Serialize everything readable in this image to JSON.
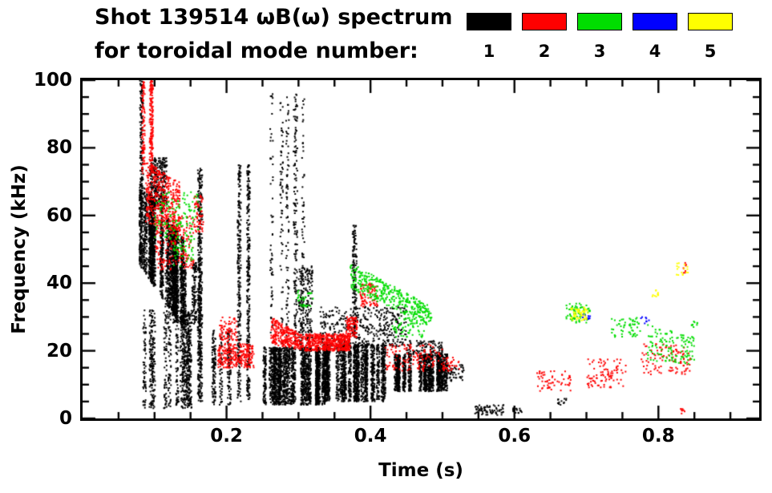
{
  "header": {
    "title": "Shot 139514 ωB(ω) spectrum",
    "subtitle": "for toroidal mode number:"
  },
  "chart_data": {
    "type": "scatter",
    "title": "Shot 139514 ωB(ω) spectrum",
    "subtitle": "for toroidal mode number:",
    "xlabel": "Time (s)",
    "ylabel": "Frequency (kHz)",
    "xlim": [
      0.0,
      0.94
    ],
    "ylim": [
      0,
      100
    ],
    "grid": false,
    "legend_position": "top-right",
    "xticks": [
      {
        "v": 0.2,
        "label": "0.2"
      },
      {
        "v": 0.4,
        "label": "0.4"
      },
      {
        "v": 0.6,
        "label": "0.6"
      },
      {
        "v": 0.8,
        "label": "0.8"
      }
    ],
    "yticks": [
      {
        "v": 0,
        "label": "0"
      },
      {
        "v": 20,
        "label": "20"
      },
      {
        "v": 40,
        "label": "40"
      },
      {
        "v": 60,
        "label": "60"
      },
      {
        "v": 80,
        "label": "80"
      },
      {
        "v": 100,
        "label": "100"
      }
    ],
    "xminor_step": 0.05,
    "yminor_step": 5,
    "legend": [
      {
        "label": "1",
        "color": "#000000"
      },
      {
        "label": "2",
        "color": "#ff0000"
      },
      {
        "label": "3",
        "color": "#00dd00"
      },
      {
        "label": "4",
        "color": "#0000ff"
      },
      {
        "label": "5",
        "color": "#ffff00"
      }
    ],
    "series": [
      {
        "name": "toroidal mode n=1",
        "color": "#000000",
        "clusters": [
          {
            "kind": "streaks",
            "t": [
              0.08,
              0.145
            ],
            "f": [
              45,
              70
            ],
            "fe": [
              25,
              52
            ],
            "n": 2600,
            "cols": 26
          },
          {
            "kind": "streaks",
            "t": [
              0.082,
              0.118
            ],
            "f": [
              62,
              77
            ],
            "n": 350,
            "cols": 8
          },
          {
            "kind": "streaks",
            "t": [
              0.08,
              0.088
            ],
            "f": [
              70,
              100
            ],
            "n": 130,
            "cols": 2
          },
          {
            "kind": "streaks",
            "t": [
              0.085,
              0.175
            ],
            "f": [
              3,
              32
            ],
            "n": 900,
            "cols": 14
          },
          {
            "kind": "streaks",
            "t": [
              0.115,
              0.165
            ],
            "f": [
              28,
              46
            ],
            "n": 450,
            "cols": 8
          },
          {
            "kind": "streaks",
            "t": [
              0.155,
              0.178
            ],
            "f": [
              5,
              74
            ],
            "n": 450,
            "cols": 3
          },
          {
            "kind": "streaks",
            "t": [
              0.178,
              0.205
            ],
            "f": [
              4,
              26
            ],
            "n": 250,
            "cols": 5
          },
          {
            "kind": "streaks",
            "t": [
              0.208,
              0.235
            ],
            "f": [
              5,
              75
            ],
            "n": 550,
            "cols": 4
          },
          {
            "kind": "streaks",
            "t": [
              0.255,
              0.31
            ],
            "f": [
              22,
              96
            ],
            "n": 420,
            "cols": 6
          },
          {
            "kind": "streaks",
            "t": [
              0.248,
              0.335
            ],
            "f": [
              4,
              21
            ],
            "n": 2200,
            "cols": 24
          },
          {
            "kind": "streaks",
            "t": [
              0.335,
              0.425
            ],
            "f": [
              5,
              22
            ],
            "n": 2000,
            "cols": 22
          },
          {
            "kind": "streaks",
            "t": [
              0.425,
              0.505
            ],
            "f": [
              8,
              19
            ],
            "n": 1400,
            "cols": 16
          },
          {
            "kind": "scatter",
            "t": [
              0.33,
              0.45
            ],
            "f": [
              21,
              33
            ],
            "n": 420
          },
          {
            "kind": "streaks",
            "t": [
              0.374,
              0.388
            ],
            "f": [
              24,
              57
            ],
            "n": 160,
            "cols": 2
          },
          {
            "kind": "streaks",
            "t": [
              0.3,
              0.335
            ],
            "f": [
              20,
              45
            ],
            "n": 220,
            "cols": 5
          },
          {
            "kind": "scatter",
            "t": [
              0.45,
              0.5
            ],
            "f": [
              18,
              23
            ],
            "n": 120
          },
          {
            "kind": "scatter",
            "t": [
              0.505,
              0.53
            ],
            "f": [
              11,
              16
            ],
            "n": 50
          },
          {
            "kind": "scatter",
            "t": [
              0.545,
              0.585
            ],
            "f": [
              1,
              4
            ],
            "n": 70
          },
          {
            "kind": "scatter",
            "t": [
              0.598,
              0.612
            ],
            "f": [
              1.5,
              3
            ],
            "n": 18
          },
          {
            "kind": "scatter",
            "t": [
              0.66,
              0.672
            ],
            "f": [
              4,
              6
            ],
            "n": 12
          }
        ]
      },
      {
        "name": "toroidal mode n=2",
        "color": "#ff0000",
        "clusters": [
          {
            "kind": "streaks",
            "t": [
              0.082,
              0.098
            ],
            "f": [
              72,
              100
            ],
            "n": 260,
            "cols": 3
          },
          {
            "kind": "scatter",
            "t": [
              0.088,
              0.135
            ],
            "f": [
              58,
              76
            ],
            "fe": [
              55,
              70
            ],
            "n": 380
          },
          {
            "kind": "scatter",
            "t": [
              0.1,
              0.155
            ],
            "f": [
              44,
              60
            ],
            "n": 220
          },
          {
            "kind": "scatter",
            "t": [
              0.155,
              0.168
            ],
            "f": [
              55,
              66
            ],
            "n": 60
          },
          {
            "kind": "scatter",
            "t": [
              0.188,
              0.238
            ],
            "f": [
              15,
              22
            ],
            "n": 260
          },
          {
            "kind": "scatter",
            "t": [
              0.19,
              0.215
            ],
            "f": [
              22,
              30
            ],
            "n": 80
          },
          {
            "kind": "scatter",
            "t": [
              0.262,
              0.31
            ],
            "f": [
              22,
              30
            ],
            "fe": [
              20,
              24
            ],
            "n": 280
          },
          {
            "kind": "scatter",
            "t": [
              0.31,
              0.372
            ],
            "f": [
              20,
              25
            ],
            "n": 480
          },
          {
            "kind": "scatter",
            "t": [
              0.366,
              0.382
            ],
            "f": [
              24,
              30
            ],
            "n": 90
          },
          {
            "kind": "scatter",
            "t": [
              0.385,
              0.41
            ],
            "f": [
              33,
              40
            ],
            "n": 80
          },
          {
            "kind": "scatter",
            "t": [
              0.42,
              0.5
            ],
            "f": [
              14,
              22
            ],
            "n": 130
          },
          {
            "kind": "scatter",
            "t": [
              0.5,
              0.525
            ],
            "f": [
              14,
              18
            ],
            "n": 40
          },
          {
            "kind": "scatter",
            "t": [
              0.63,
              0.68
            ],
            "f": [
              8,
              14
            ],
            "n": 60
          },
          {
            "kind": "scatter",
            "t": [
              0.7,
              0.755
            ],
            "f": [
              9,
              18
            ],
            "n": 90
          },
          {
            "kind": "scatter",
            "t": [
              0.775,
              0.845
            ],
            "f": [
              13,
              22
            ],
            "n": 110
          },
          {
            "kind": "scatter",
            "t": [
              0.832,
              0.842
            ],
            "f": [
              43,
              46
            ],
            "n": 8
          },
          {
            "kind": "scatter",
            "t": [
              0.828,
              0.838
            ],
            "f": [
              1,
              3
            ],
            "n": 8
          }
        ]
      },
      {
        "name": "toroidal mode n=3",
        "color": "#00dd00",
        "clusters": [
          {
            "kind": "scatter",
            "t": [
              0.1,
              0.165
            ],
            "f": [
              53,
              67
            ],
            "n": 130
          },
          {
            "kind": "scatter",
            "t": [
              0.125,
              0.155
            ],
            "f": [
              45,
              53
            ],
            "n": 45
          },
          {
            "kind": "scatter",
            "t": [
              0.298,
              0.322
            ],
            "f": [
              33,
              38
            ],
            "n": 30
          },
          {
            "kind": "scatter",
            "t": [
              0.372,
              0.485
            ],
            "f": [
              38,
              46
            ],
            "fe": [
              27,
              33
            ],
            "n": 380
          },
          {
            "kind": "scatter",
            "t": [
              0.43,
              0.475
            ],
            "f": [
              24,
              30
            ],
            "n": 70
          },
          {
            "kind": "scatter",
            "t": [
              0.672,
              0.705
            ],
            "f": [
              28,
              34
            ],
            "n": 70
          },
          {
            "kind": "scatter",
            "t": [
              0.735,
              0.775
            ],
            "f": [
              24,
              30
            ],
            "n": 55
          },
          {
            "kind": "scatter",
            "t": [
              0.785,
              0.85
            ],
            "f": [
              17,
              28
            ],
            "fe": [
              16,
              24
            ],
            "n": 130
          },
          {
            "kind": "scatter",
            "t": [
              0.845,
              0.855
            ],
            "f": [
              27,
              29
            ],
            "n": 10
          }
        ]
      },
      {
        "name": "toroidal mode n=4",
        "color": "#0000ff",
        "clusters": [
          {
            "kind": "scatter",
            "t": [
              0.695,
              0.707
            ],
            "f": [
              29,
              31
            ],
            "n": 10
          },
          {
            "kind": "scatter",
            "t": [
              0.775,
              0.787
            ],
            "f": [
              28,
              30
            ],
            "n": 8
          }
        ]
      },
      {
        "name": "toroidal mode n=5",
        "color": "#ffff00",
        "clusters": [
          {
            "kind": "scatter",
            "t": [
              0.678,
              0.702
            ],
            "f": [
              29,
              33
            ],
            "n": 55
          },
          {
            "kind": "scatter",
            "t": [
              0.79,
              0.8
            ],
            "f": [
              36,
              38
            ],
            "n": 12
          },
          {
            "kind": "scatter",
            "t": [
              0.824,
              0.842
            ],
            "f": [
              42,
              46
            ],
            "n": 16
          }
        ]
      }
    ]
  }
}
